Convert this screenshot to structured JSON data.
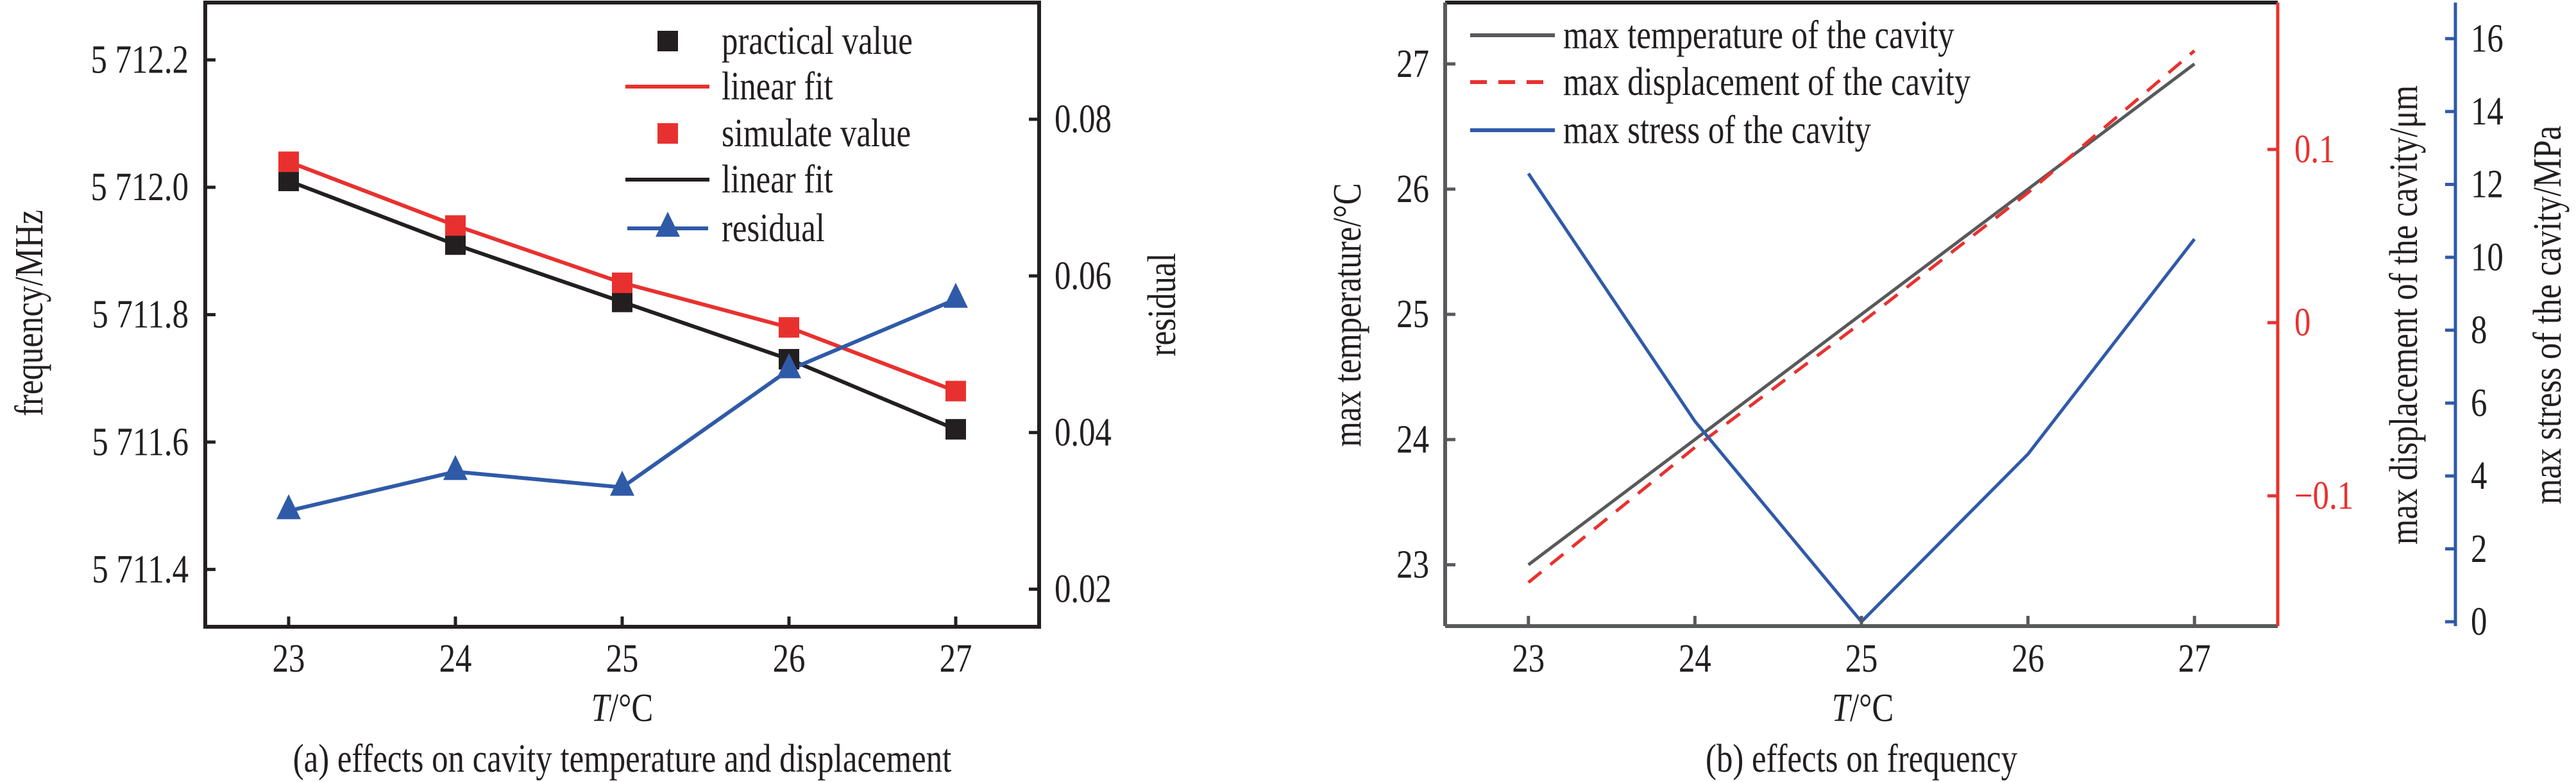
{
  "chart_data": [
    {
      "id": "a",
      "type": "line",
      "caption": "(a) effects on cavity temperature and displacement",
      "xlabel_italic": "T",
      "xlabel_unit": "/°C",
      "ylabel": "frequency/MHz",
      "ylabel_right": "residual",
      "xlim": [
        22.5,
        27.5
      ],
      "ylim": [
        5711.31,
        5712.29
      ],
      "ylim_right": [
        0.0152,
        0.0949
      ],
      "x_ticks": [
        23,
        24,
        25,
        26,
        27
      ],
      "x_tick_labels": [
        "23",
        "24",
        "25",
        "26",
        "27"
      ],
      "y_ticks": [
        5711.4,
        5711.6,
        5711.8,
        5712.0,
        5712.2
      ],
      "y_tick_labels": [
        "5 711.4",
        "5 711.6",
        "5 711.8",
        "5 712.0",
        "5 712.2"
      ],
      "y_right_ticks": [
        0.02,
        0.04,
        0.06,
        0.08
      ],
      "y_right_tick_labels": [
        "0.02",
        "0.04",
        "0.06",
        "0.08"
      ],
      "grid": false,
      "legend_position": "top-right",
      "x": [
        23,
        24,
        25,
        26,
        27
      ],
      "series": [
        {
          "name": "practical value",
          "kind": "markers",
          "marker": "square",
          "color": "#231f20",
          "axis": "left",
          "values": [
            5712.01,
            5711.91,
            5711.82,
            5711.73,
            5711.62
          ]
        },
        {
          "name": "linear fit",
          "kind": "line",
          "color": "#e8312f",
          "axis": "left",
          "fit_of": "simulate value",
          "values": [
            5712.04,
            5711.94,
            5711.85,
            5711.78,
            5711.68
          ]
        },
        {
          "name": "simulate value",
          "kind": "markers",
          "marker": "square",
          "color": "#e8312f",
          "axis": "left",
          "values": [
            5712.04,
            5711.94,
            5711.85,
            5711.78,
            5711.68
          ]
        },
        {
          "name": "linear fit",
          "kind": "line",
          "color": "#231f20",
          "axis": "left",
          "fit_of": "practical value",
          "values": [
            5712.01,
            5711.91,
            5711.82,
            5711.73,
            5711.62
          ]
        },
        {
          "name": "residual",
          "kind": "line+markers",
          "marker": "triangle",
          "color": "#2f5aa8",
          "axis": "right",
          "values": [
            0.03,
            0.035,
            0.033,
            0.048,
            0.057
          ]
        }
      ],
      "legend": [
        {
          "label": "practical value",
          "symbol": "square",
          "color": "#231f20"
        },
        {
          "label": "linear fit",
          "symbol": "line",
          "color": "#e8312f"
        },
        {
          "label": "simulate value",
          "symbol": "square",
          "color": "#e8312f"
        },
        {
          "label": "linear fit",
          "symbol": "line",
          "color": "#231f20"
        },
        {
          "label": "residual",
          "symbol": "line-triangle",
          "color": "#2f5aa8"
        }
      ]
    },
    {
      "id": "b",
      "type": "line",
      "caption": "(b) effects on frequency",
      "xlabel_italic": "T",
      "xlabel_unit": "/°C",
      "ylabel": "max temperature/°C",
      "ylabel_right": "max displacement of the cavity/μm",
      "ylabel_right2": "max stress of the cavity/MPa",
      "xlim": [
        22.5,
        27.5
      ],
      "ylim": [
        22.51,
        27.49
      ],
      "ylim_right": [
        -0.1752,
        0.1848
      ],
      "ylim_right2": [
        -0.12,
        16.99
      ],
      "x_ticks": [
        23,
        24,
        25,
        26,
        27
      ],
      "x_tick_labels": [
        "23",
        "24",
        "25",
        "26",
        "27"
      ],
      "y_ticks": [
        23,
        24,
        25,
        26,
        27
      ],
      "y_tick_labels": [
        "23",
        "24",
        "25",
        "26",
        "27"
      ],
      "y_right_ticks": [
        -0.1,
        0,
        0.1
      ],
      "y_right_tick_labels": [
        "−0.1",
        "0",
        "0.1"
      ],
      "y_right2_ticks": [
        0,
        2,
        4,
        6,
        8,
        10,
        12,
        14,
        16
      ],
      "y_right2_tick_labels": [
        "0",
        "2",
        "4",
        "6",
        "8",
        "10",
        "12",
        "14",
        "16"
      ],
      "axis_colors": {
        "left": "#58595b",
        "right": "#e8312f",
        "right2": "#2f5aa8"
      },
      "grid": false,
      "legend_position": "top-left",
      "x": [
        23,
        24,
        25,
        26,
        27
      ],
      "series": [
        {
          "name": "max temperature of the cavity",
          "style": "solid",
          "color": "#58595b",
          "axis": "left",
          "values": [
            23.0,
            24.0,
            25.0,
            26.0,
            27.0
          ]
        },
        {
          "name": "max displacement of the cavity",
          "style": "dashed",
          "color": "#e8312f",
          "axis": "right",
          "values": [
            -0.15,
            -0.072,
            0.0,
            0.075,
            0.157
          ]
        },
        {
          "name": "max stress of the cavity",
          "style": "solid",
          "color": "#2f5aa8",
          "axis": "right2",
          "values": [
            12.3,
            5.5,
            0.0,
            4.6,
            10.5
          ]
        }
      ],
      "legend": [
        {
          "label": "max temperature of the cavity",
          "symbol": "line",
          "color": "#58595b"
        },
        {
          "label": "max displacement of the cavity",
          "symbol": "dashed",
          "color": "#e8312f"
        },
        {
          "label": "max stress of the cavity",
          "symbol": "line",
          "color": "#2f5aa8"
        }
      ]
    }
  ]
}
